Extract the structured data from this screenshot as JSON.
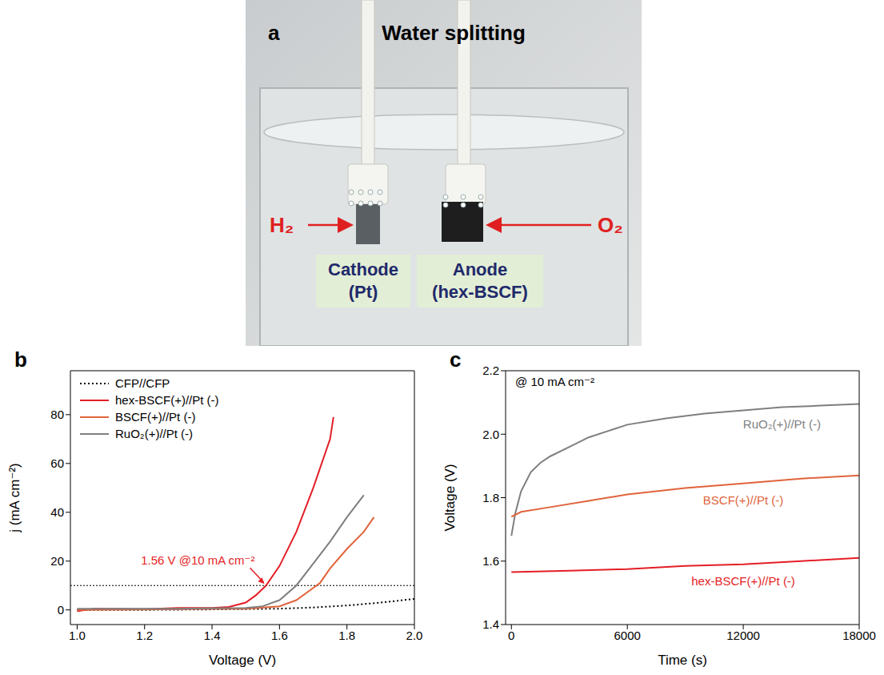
{
  "panel_a": {
    "panel": "a",
    "title": "Water splitting",
    "cathode_gas": "H₂",
    "anode_gas": "O₂",
    "cathode": "Cathode (Pt)",
    "anode": "Anode (hex-BSCF)"
  },
  "chart_data": [
    {
      "panel": "b",
      "type": "line",
      "x_label": "Voltage (V)",
      "y_label": "j (mA cm⁻²)",
      "xlim": [
        0.98,
        2.0
      ],
      "xticks": [
        {
          "value": 1,
          "label": "1.0"
        },
        1.2,
        1.4,
        1.6,
        1.8,
        {
          "value": 2,
          "label": "2.0"
        }
      ],
      "ylim": [
        -6,
        98
      ],
      "yticks": [
        0,
        20,
        40,
        60,
        80
      ],
      "legend": "upper left",
      "annotations": [
        {
          "text": "1.56 V @10 mA cm⁻²",
          "x": 1.56,
          "y": 10
        }
      ],
      "series": [
        {
          "name": "CFP//CFP",
          "color": "#000000",
          "line_style": "dotted",
          "x": [
            1.0,
            1.2,
            1.4,
            1.6,
            1.7,
            1.8,
            1.9,
            2.0
          ],
          "values": [
            0,
            0,
            0.2,
            0.5,
            1,
            1.8,
            3,
            4.5
          ]
        },
        {
          "name": "hex-BSCF(+)//Pt (-)",
          "color": "#e41e26",
          "line_style": "solid",
          "x": [
            1.0,
            1.05,
            1.2,
            1.3,
            1.4,
            1.45,
            1.5,
            1.53,
            1.56,
            1.6,
            1.65,
            1.7,
            1.75,
            1.76
          ],
          "values": [
            -0.5,
            0.5,
            0.3,
            0.8,
            0.8,
            1.2,
            3,
            6,
            10,
            18,
            32,
            50,
            70,
            79
          ]
        },
        {
          "name": "BSCF(+)//Pt (-)",
          "color": "#e0643c",
          "line_style": "solid",
          "x": [
            1.0,
            1.5,
            1.6,
            1.65,
            1.7,
            1.72,
            1.75,
            1.8,
            1.85,
            1.88
          ],
          "values": [
            0,
            0.5,
            1.5,
            4,
            9,
            11,
            17,
            25,
            32,
            38
          ]
        },
        {
          "name": "RuO₂(+)//Pt (-)",
          "color": "#7f7f7f",
          "line_style": "solid",
          "x": [
            1.0,
            1.3,
            1.5,
            1.55,
            1.6,
            1.65,
            1.7,
            1.75,
            1.8,
            1.85
          ],
          "values": [
            0.5,
            0.5,
            0.8,
            1.5,
            4,
            10,
            19,
            28,
            38,
            47
          ]
        }
      ]
    },
    {
      "panel": "c",
      "type": "line",
      "x_label": "Time (s)",
      "y_label": "Voltage (V)",
      "xlim": [
        -300,
        18000
      ],
      "xticks": [
        0,
        6000,
        12000,
        18000
      ],
      "ylim": [
        1.4,
        2.2
      ],
      "yticks": [
        1.4,
        1.6,
        1.8,
        {
          "value": 2,
          "label": "2.0"
        },
        2.2
      ],
      "legend": "inline",
      "annotations": [
        {
          "text": "@ 10 mA cm⁻²"
        }
      ],
      "series": [
        {
          "name": "RuO₂(+)//Pt (-)",
          "color": "#7f7f7f",
          "line_style": "solid",
          "x": [
            0,
            200,
            500,
            1000,
            1500,
            2000,
            3000,
            4000,
            6000,
            8000,
            10000,
            12000,
            14000,
            16000,
            18000
          ],
          "values": [
            1.68,
            1.75,
            1.82,
            1.88,
            1.91,
            1.93,
            1.96,
            1.99,
            2.03,
            2.05,
            2.065,
            2.075,
            2.085,
            2.09,
            2.095
          ]
        },
        {
          "name": "BSCF(+)//Pt (-)",
          "color": "#e0643c",
          "line_style": "solid",
          "x": [
            0,
            500,
            2000,
            4000,
            6000,
            9000,
            12000,
            15000,
            18000
          ],
          "values": [
            1.74,
            1.755,
            1.77,
            1.79,
            1.81,
            1.83,
            1.845,
            1.86,
            1.87
          ]
        },
        {
          "name": "hex-BSCF(+)//Pt (-)",
          "color": "#e41e26",
          "line_style": "solid",
          "x": [
            0,
            3000,
            6000,
            9000,
            12000,
            15000,
            18000
          ],
          "values": [
            1.565,
            1.57,
            1.575,
            1.585,
            1.59,
            1.6,
            1.61
          ]
        }
      ]
    }
  ]
}
